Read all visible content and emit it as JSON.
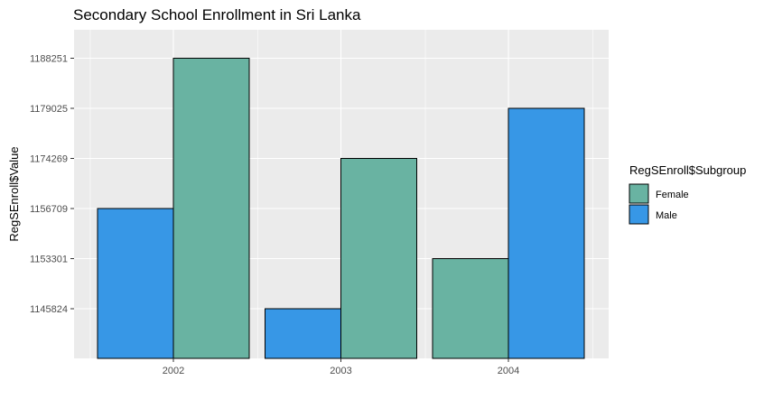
{
  "chart_data": {
    "type": "bar",
    "title": "Secondary School Enrollment in Sri Lanka",
    "xlabel": "",
    "ylabel": "RegSEnroll$Value",
    "categories": [
      "2002",
      "2003",
      "2004"
    ],
    "y_tick_labels": [
      "1145824",
      "1153301",
      "1156709",
      "1174269",
      "1179025",
      "1188251"
    ],
    "y_axis_scale": "discrete",
    "bars": [
      {
        "category": "2002",
        "subgroup": "Male",
        "value": 1156709,
        "dodge": "left"
      },
      {
        "category": "2002",
        "subgroup": "Female",
        "value": 1188251,
        "dodge": "right"
      },
      {
        "category": "2003",
        "subgroup": "Male",
        "value": 1145824,
        "dodge": "left"
      },
      {
        "category": "2003",
        "subgroup": "Female",
        "value": 1174269,
        "dodge": "right"
      },
      {
        "category": "2004",
        "subgroup": "Female",
        "value": 1153301,
        "dodge": "left"
      },
      {
        "category": "2004",
        "subgroup": "Male",
        "value": 1179025,
        "dodge": "right"
      }
    ],
    "legend": {
      "title": "RegSEnroll$Subgroup",
      "position": "right",
      "entries": [
        {
          "label": "Female",
          "color": "#69B3A2"
        },
        {
          "label": "Male",
          "color": "#3797E6"
        }
      ]
    },
    "colors": {
      "Female": "#69B3A2",
      "Male": "#3797E6",
      "panel_background": "#EBEBEB",
      "grid": "#FFFFFF",
      "bar_outline": "#000000"
    },
    "grid": true
  }
}
